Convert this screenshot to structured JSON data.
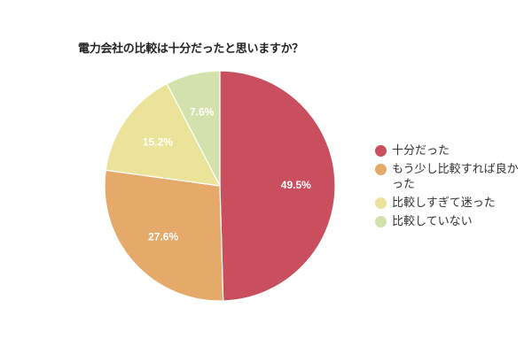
{
  "title": "電力会社の比較は十分だったと思いますか？",
  "legend": [
    {
      "label": "十分だった",
      "color": "#c94f5e"
    },
    {
      "label": "もう少し比較すれば良かった",
      "color": "#e5a96a"
    },
    {
      "label": "比較しすぎて迷った",
      "color": "#ebe39a"
    },
    {
      "label": "比較していない",
      "color": "#d3e2ad"
    }
  ],
  "slices": [
    {
      "label": "49.5%",
      "value": 49.5,
      "color": "#c94f5e"
    },
    {
      "label": "27.6%",
      "value": 27.6,
      "color": "#e5a96a"
    },
    {
      "label": "15.2%",
      "value": 15.2,
      "color": "#ebe39a"
    },
    {
      "label": "7.6%",
      "value": 7.6,
      "color": "#d3e2ad"
    }
  ],
  "chart_data": {
    "type": "pie",
    "title": "電力会社の比較は十分だったと思いますか？",
    "categories": [
      "十分だった",
      "もう少し比較すれば良かった",
      "比較しすぎて迷った",
      "比較していない"
    ],
    "values": [
      49.5,
      27.6,
      15.2,
      7.6
    ],
    "colors": [
      "#c94f5e",
      "#e5a96a",
      "#ebe39a",
      "#d3e2ad"
    ],
    "data_labels": [
      "49.5%",
      "27.6%",
      "15.2%",
      "7.6%"
    ],
    "legend_position": "right",
    "start_angle": "12 o'clock, clockwise"
  }
}
